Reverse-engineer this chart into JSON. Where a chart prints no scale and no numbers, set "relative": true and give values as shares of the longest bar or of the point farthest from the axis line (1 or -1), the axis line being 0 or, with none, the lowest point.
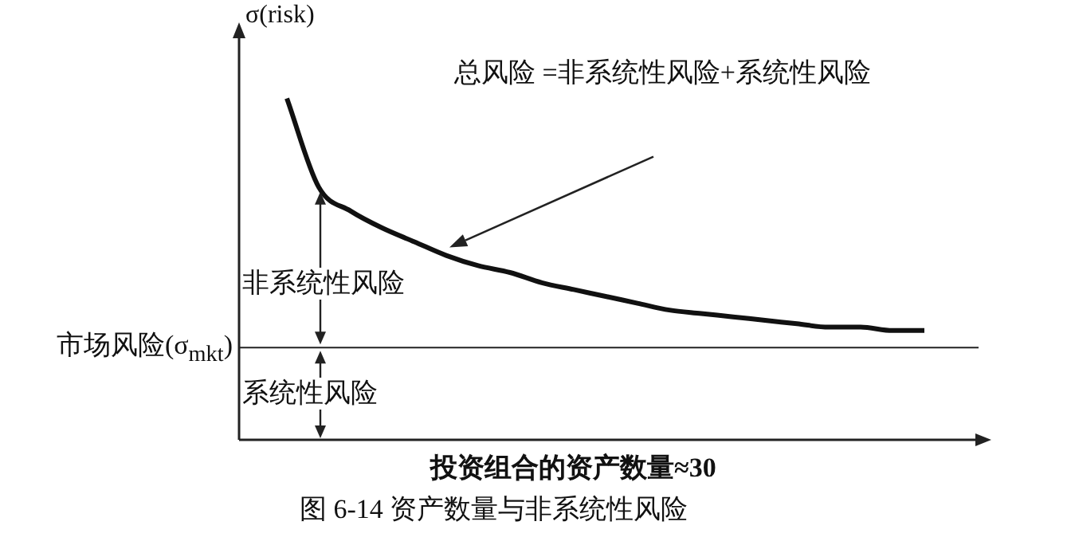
{
  "chart_data": {
    "type": "line",
    "title": "图 6-14 资产数量与非系统性风险",
    "ylabel": "σ(risk)",
    "xlabel": "投资组合的资产数量≈30",
    "annotations": [
      "总风险 =非系统性风险+系统性风险",
      "非系统性风险",
      "系统性风险"
    ],
    "categories": [
      null,
      null,
      null,
      null,
      null,
      null,
      null,
      null,
      null,
      null,
      null,
      null,
      null,
      null,
      null,
      null,
      null,
      null,
      null,
      null,
      null,
      null,
      null
    ],
    "relative": true,
    "marker": "none",
    "series": [
      {
        "color": "#111111",
        "values": [
          null,
          1.0,
          0.74,
          0.67,
          0.62,
          0.58,
          0.54,
          0.51,
          0.49,
          0.46,
          0.44,
          0.42,
          0.4,
          0.38,
          0.37,
          0.36,
          0.35,
          0.34,
          0.33,
          0.33,
          0.32,
          0.32,
          null
        ]
      }
    ],
    "ref_lines": [
      {
        "axis": "y",
        "value": 0.27,
        "label": "市场风险(σ$_{mkt}$)",
        "color": "#222222"
      }
    ]
  }
}
